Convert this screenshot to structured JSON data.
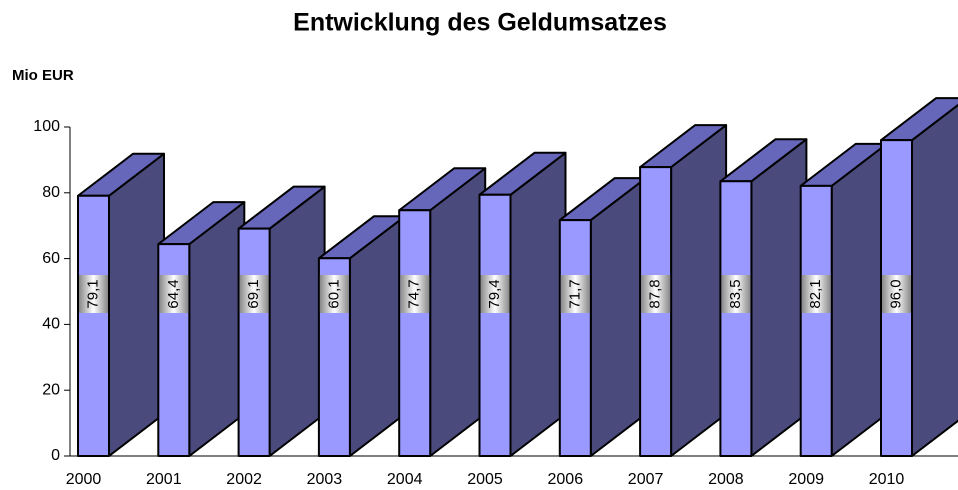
{
  "chart_data": {
    "type": "bar3d",
    "title": "Entwicklung des Geldumsatzes",
    "y_label": "Mio EUR",
    "categories": [
      "2000",
      "2001",
      "2002",
      "2003",
      "2004",
      "2005",
      "2006",
      "2007",
      "2008",
      "2009",
      "2010"
    ],
    "values": [
      79.1,
      64.4,
      69.1,
      60.1,
      74.7,
      79.4,
      71.7,
      87.8,
      83.5,
      82.1,
      96.0
    ],
    "value_labels": [
      "79,1",
      "64,4",
      "69,1",
      "60,1",
      "74,7",
      "79,4",
      "71,7",
      "87,8",
      "83,5",
      "82,1",
      "96,0"
    ],
    "color": "#9999ff",
    "ylim": [
      0,
      100
    ],
    "yticks": [
      0,
      20,
      40,
      60,
      80,
      100
    ]
  }
}
